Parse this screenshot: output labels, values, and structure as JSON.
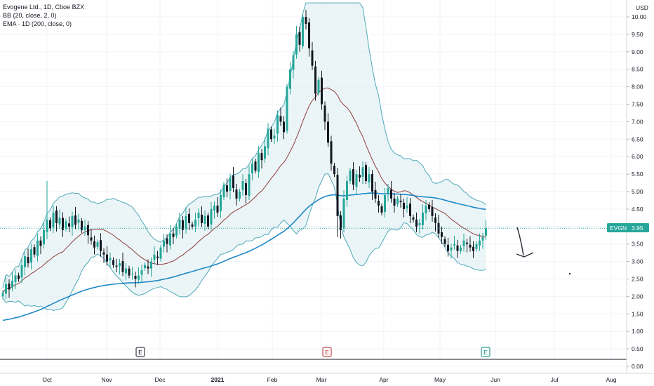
{
  "legend": {
    "line1": "Evogene Ltd., 1D, Cboe BZX",
    "line2": "BB (20, close, 2, 0)",
    "line3": "EMA · 1D (200, close, 0)"
  },
  "price_axis": {
    "currency": "USD",
    "ticks": [
      "10.00",
      "9.50",
      "9.00",
      "8.50",
      "8.00",
      "7.50",
      "7.00",
      "6.50",
      "6.00",
      "5.50",
      "5.00",
      "4.50",
      "4.00",
      "3.50",
      "3.00",
      "2.50",
      "2.00",
      "1.50",
      "1.00",
      "0.50",
      "0.00"
    ]
  },
  "time_axis": {
    "ticks": [
      "Oct",
      "Nov",
      "Dec",
      "2021",
      "Feb",
      "Mar",
      "Apr",
      "May",
      "Jun",
      "Jul",
      "Aug"
    ]
  },
  "price_tag": {
    "symbol": "EVGN",
    "value": "3.95",
    "color": "#26a69a"
  },
  "earnings_markers": [
    {
      "label": "E",
      "color": "#131722"
    },
    {
      "label": "E",
      "color": "#b71c1c"
    },
    {
      "label": "E",
      "color": "#00897b"
    }
  ],
  "colors": {
    "up": "#26a69a",
    "down": "#131722",
    "band": "#4fa8b8",
    "basis": "#8d3b3b",
    "ema": "#1e88c7",
    "band_fill": "#e3f1f4"
  },
  "chart_data": {
    "type": "candlestick",
    "ylim": [
      0,
      10.4
    ],
    "x_start": "2020-09-01",
    "series": [
      {
        "name": "EVGN",
        "close": [
          2.1,
          2.35,
          2.2,
          2.45,
          2.6,
          2.5,
          2.9,
          3.15,
          2.95,
          3.35,
          3.2,
          3.6,
          3.45,
          3.9,
          4.2,
          3.95,
          4.4,
          4.1,
          4.25,
          3.9,
          4.15,
          4.0,
          4.3,
          4.05,
          4.2,
          3.9,
          4.0,
          3.75,
          3.6,
          3.4,
          3.55,
          3.3,
          3.2,
          3.0,
          3.1,
          2.9,
          2.85,
          2.95,
          2.7,
          2.8,
          2.6,
          2.65,
          2.5,
          2.6,
          2.75,
          2.9,
          2.8,
          3.0,
          3.2,
          3.1,
          3.4,
          3.6,
          3.5,
          3.8,
          3.7,
          4.0,
          4.2,
          3.9,
          4.3,
          4.1,
          4.0,
          4.2,
          4.4,
          4.1,
          4.3,
          4.0,
          4.5,
          4.6,
          4.4,
          4.9,
          5.2,
          5.0,
          5.4,
          5.1,
          4.8,
          5.0,
          5.3,
          4.9,
          5.5,
          5.8,
          5.6,
          6.1,
          5.9,
          6.3,
          6.8,
          6.5,
          6.6,
          7.2,
          7.0,
          6.7,
          8.0,
          8.5,
          8.9,
          9.5,
          9.2,
          10.0,
          9.8,
          9.1,
          8.6,
          7.8,
          8.2,
          7.5,
          7.0,
          6.4,
          5.8,
          5.5,
          4.3,
          3.9,
          4.8,
          5.3,
          5.6,
          5.2,
          5.5,
          5.4,
          5.7,
          5.3,
          5.5,
          5.0,
          4.8,
          4.6,
          4.4,
          4.9,
          5.1,
          4.8,
          4.6,
          4.8,
          4.7,
          4.5,
          4.6,
          4.3,
          4.2,
          4.0,
          4.1,
          4.4,
          4.6,
          4.5,
          4.3,
          4.1,
          3.8,
          3.7,
          3.5,
          3.3,
          3.4,
          3.5,
          3.3,
          3.4,
          3.6,
          3.5,
          3.4,
          3.3,
          3.5,
          3.6,
          3.7,
          3.95
        ]
      }
    ],
    "indicators": [
      {
        "name": "BB",
        "params": "20, close, 2, 0"
      },
      {
        "name": "EMA",
        "params": "200, close, 0"
      }
    ]
  }
}
